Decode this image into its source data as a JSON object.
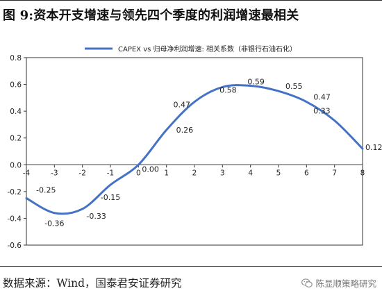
{
  "header": {
    "title": "图 9:资本开支增速与领先四个季度的利润增速最相关"
  },
  "footer": {
    "source": "数据来源：Wind，国泰君安证券研究",
    "watermark": "陈显顺策略研究",
    "watermark_icon": "wechat-icon"
  },
  "chart_data": {
    "type": "line",
    "title": "",
    "xlabel": "",
    "ylabel": "",
    "x": [
      -4,
      -3,
      -2,
      -1,
      0,
      1,
      2,
      3,
      4,
      5,
      6,
      7,
      8
    ],
    "xlim": [
      -4,
      8
    ],
    "ylim": [
      -0.6,
      0.8
    ],
    "x_ticks": [
      "-4",
      "-3",
      "-2",
      "-1",
      "0",
      "1",
      "2",
      "3",
      "4",
      "5",
      "6",
      "7",
      "8"
    ],
    "y_ticks": [
      "0.8",
      "0.6",
      "0.4",
      "0.2",
      "0.0",
      "-0.2",
      "-0.4",
      "-0.6"
    ],
    "grid": false,
    "legend": "top",
    "series": [
      {
        "name": "CAPEX vs 归母净利润增速: 相关系数（非银行石油石化）",
        "color": "#4472C4",
        "values": [
          -0.25,
          -0.36,
          -0.33,
          -0.15,
          0.0,
          0.26,
          0.47,
          0.58,
          0.59,
          0.55,
          0.47,
          0.33,
          0.12
        ],
        "labels": [
          "-0.25",
          "-0.36",
          "-0.33",
          "-0.15",
          "0.00",
          "0.26",
          "0.47",
          "0.58",
          "0.59",
          "0.55",
          "0.47",
          "0.33",
          "0.12"
        ]
      }
    ]
  }
}
